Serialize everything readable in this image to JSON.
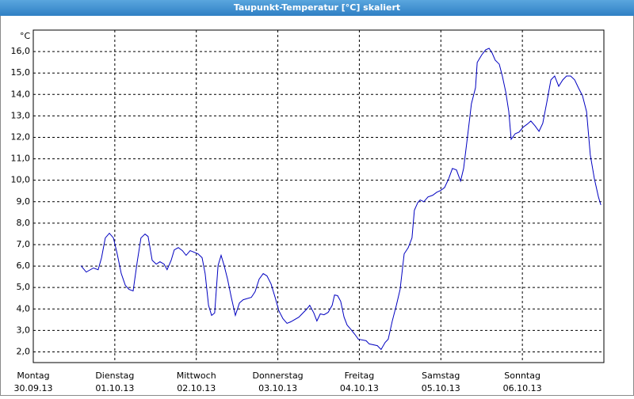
{
  "chart_data": {
    "type": "line",
    "title": "Taupunkt-Temperatur [°C] skaliert",
    "y_unit": "°C",
    "xlim": [
      0,
      168
    ],
    "ylim": [
      1.5,
      17
    ],
    "xticks": [
      {
        "value": 0,
        "label": "Montag"
      },
      {
        "value": 24,
        "label": "Dienstag"
      },
      {
        "value": 48,
        "label": "Mittwoch"
      },
      {
        "value": 72,
        "label": "Donnerstag"
      },
      {
        "value": 96,
        "label": "Freitag"
      },
      {
        "value": 120,
        "label": "Samstag"
      },
      {
        "value": 144,
        "label": "Sonntag"
      }
    ],
    "xtick_dates": [
      "30.09.13",
      "01.10.13",
      "02.10.13",
      "03.10.13",
      "04.10.13",
      "05.10.13",
      "06.10.13"
    ],
    "yticks": [
      {
        "value": 2,
        "label": "2,0"
      },
      {
        "value": 3,
        "label": "3,0"
      },
      {
        "value": 4,
        "label": "4,0"
      },
      {
        "value": 5,
        "label": "5,0"
      },
      {
        "value": 6,
        "label": "6,0"
      },
      {
        "value": 7,
        "label": "7,0"
      },
      {
        "value": 8,
        "label": "8,0"
      },
      {
        "value": 9,
        "label": "9,0"
      },
      {
        "value": 10,
        "label": "10,0"
      },
      {
        "value": 11,
        "label": "11,0"
      },
      {
        "value": 12,
        "label": "12,0"
      },
      {
        "value": 13,
        "label": "13,0"
      },
      {
        "value": 14,
        "label": "14,0"
      },
      {
        "value": 15,
        "label": "15,0"
      },
      {
        "value": 16,
        "label": "16,0"
      }
    ],
    "grid": true,
    "series": [
      {
        "color": "#0000c0",
        "x": [
          14.0,
          15.6,
          17.7,
          19.1,
          20.1,
          21.2,
          22.4,
          23.6,
          24.7,
          25.9,
          27.1,
          28.2,
          29.4,
          30.6,
          31.7,
          32.9,
          33.8,
          35.0,
          36.2,
          37.3,
          38.5,
          39.4,
          40.6,
          41.5,
          42.7,
          43.9,
          45.0,
          46.2,
          48.5,
          49.7,
          50.6,
          51.6,
          52.5,
          53.4,
          54.4,
          55.3,
          56.2,
          57.2,
          58.3,
          59.5,
          60.7,
          61.8,
          64.2,
          65.3,
          66.5,
          67.7,
          68.8,
          70.0,
          71.2,
          72.3,
          73.5,
          74.7,
          75.8,
          78.2,
          80.5,
          81.4,
          82.6,
          83.5,
          84.5,
          85.6,
          86.8,
          88.0,
          88.7,
          89.6,
          90.5,
          91.5,
          92.4,
          93.6,
          94.7,
          95.7,
          98.0,
          98.9,
          101.3,
          102.4,
          103.6,
          104.5,
          105.7,
          106.9,
          108.0,
          109.2,
          110.4,
          111.5,
          112.2,
          113.2,
          113.9,
          115.0,
          116.2,
          117.6,
          118.8,
          119.9,
          121.1,
          122.3,
          123.4,
          124.6,
          125.8,
          126.7,
          127.9,
          129.0,
          130.2,
          130.7,
          132.1,
          133.2,
          134.2,
          135.1,
          136.0,
          137.2,
          138.1,
          139.1,
          140.0,
          140.7,
          141.9,
          143.0,
          144.2,
          145.4,
          146.5,
          147.7,
          148.9,
          150.0,
          151.2,
          152.4,
          153.5,
          154.7,
          155.9,
          157.0,
          158.2,
          159.4,
          160.5,
          161.7,
          162.9,
          164.0,
          165.2,
          166.4,
          167.1
        ],
        "values": [
          6.02,
          5.72,
          5.91,
          5.83,
          6.39,
          7.31,
          7.53,
          7.31,
          6.57,
          5.65,
          5.1,
          4.91,
          4.84,
          6.2,
          7.31,
          7.49,
          7.38,
          6.27,
          6.09,
          6.2,
          6.09,
          5.83,
          6.27,
          6.75,
          6.86,
          6.72,
          6.5,
          6.72,
          6.57,
          6.39,
          5.65,
          4.17,
          3.7,
          3.81,
          6.02,
          6.5,
          6.02,
          5.39,
          4.54,
          3.7,
          4.28,
          4.43,
          4.54,
          4.8,
          5.39,
          5.65,
          5.54,
          5.17,
          4.54,
          3.92,
          3.55,
          3.33,
          3.4,
          3.62,
          3.99,
          4.17,
          3.81,
          3.44,
          3.77,
          3.73,
          3.84,
          4.17,
          4.65,
          4.62,
          4.36,
          3.62,
          3.25,
          3.03,
          2.81,
          2.59,
          2.52,
          2.37,
          2.29,
          2.11,
          2.44,
          2.59,
          3.44,
          4.17,
          4.91,
          6.57,
          6.86,
          7.31,
          8.6,
          8.96,
          9.08,
          9.0,
          9.22,
          9.3,
          9.44,
          9.52,
          9.66,
          10.07,
          10.55,
          10.48,
          9.96,
          10.55,
          12.1,
          13.57,
          14.31,
          15.49,
          15.86,
          16.08,
          16.15,
          15.93,
          15.6,
          15.41,
          14.86,
          14.12,
          13.2,
          11.91,
          12.17,
          12.24,
          12.47,
          12.61,
          12.76,
          12.54,
          12.28,
          12.65,
          13.64,
          14.68,
          14.86,
          14.38,
          14.68,
          14.86,
          14.86,
          14.68,
          14.31,
          13.94,
          13.2,
          11.18,
          10.07,
          9.22,
          8.85
        ]
      }
    ]
  }
}
